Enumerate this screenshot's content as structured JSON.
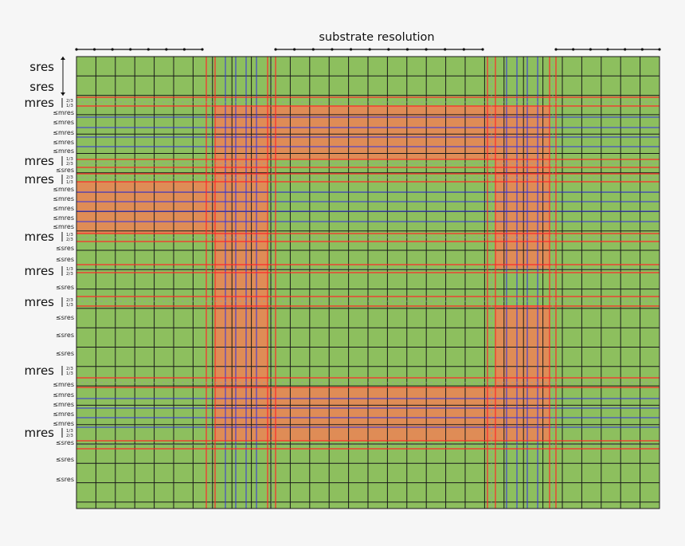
{
  "title": "substrate resolution",
  "colors": {
    "background": "#f6f6f6",
    "substrate": "#8dbf5e",
    "mask": "#df8c56",
    "grid_black": "#1a1a1a",
    "grid_red": "#ff2a2a",
    "grid_blue": "#3232e0",
    "dashed": "#9a9a9a"
  },
  "row_labels": [
    {
      "text": "sres",
      "size": "big"
    },
    {
      "text": "sres",
      "size": "big"
    },
    {
      "text": "mres",
      "size": "big",
      "fractions": [
        "2/3",
        "1/3"
      ]
    },
    {
      "text": "≤mres",
      "size": "small"
    },
    {
      "text": "≤mres",
      "size": "small"
    },
    {
      "text": "≤mres",
      "size": "small"
    },
    {
      "text": "≤mres",
      "size": "small"
    },
    {
      "text": "≤mres",
      "size": "small"
    },
    {
      "text": "mres",
      "size": "big",
      "fractions": [
        "1/3",
        "2/3"
      ]
    },
    {
      "text": "≤sres",
      "size": "small"
    },
    {
      "text": "mres",
      "size": "big",
      "fractions": [
        "2/3",
        "1/3"
      ]
    },
    {
      "text": "≤mres",
      "size": "small"
    },
    {
      "text": "≤mres",
      "size": "small"
    },
    {
      "text": "≤mres",
      "size": "small"
    },
    {
      "text": "≤mres",
      "size": "small"
    },
    {
      "text": "≤mres",
      "size": "small"
    },
    {
      "text": "mres",
      "size": "big",
      "fractions": [
        "1/3",
        "2/3"
      ]
    },
    {
      "text": "≤sres",
      "size": "small"
    },
    {
      "text": "≤sres",
      "size": "small"
    },
    {
      "text": "mres",
      "size": "big",
      "fractions": [
        "1/3",
        "2/3"
      ]
    },
    {
      "text": "≤sres",
      "size": "small"
    },
    {
      "text": "mres",
      "size": "big",
      "fractions": [
        "2/3",
        "1/3"
      ]
    },
    {
      "text": "≤sres",
      "size": "small"
    },
    {
      "text": "≤sres",
      "size": "small"
    },
    {
      "text": "≤sres",
      "size": "small"
    },
    {
      "text": "mres",
      "size": "big",
      "fractions": [
        "2/3",
        "1/3"
      ]
    },
    {
      "text": "≤mres",
      "size": "small"
    },
    {
      "text": "≤mres",
      "size": "small"
    },
    {
      "text": "≤mres",
      "size": "small"
    },
    {
      "text": "≤mres",
      "size": "small"
    },
    {
      "text": "≤mres",
      "size": "small"
    },
    {
      "text": "mres",
      "size": "big",
      "fractions": [
        "1/3",
        "2/3"
      ]
    },
    {
      "text": "≤sres",
      "size": "small"
    },
    {
      "text": "≤sres",
      "size": "small"
    },
    {
      "text": "≤sres",
      "size": "small"
    }
  ]
}
